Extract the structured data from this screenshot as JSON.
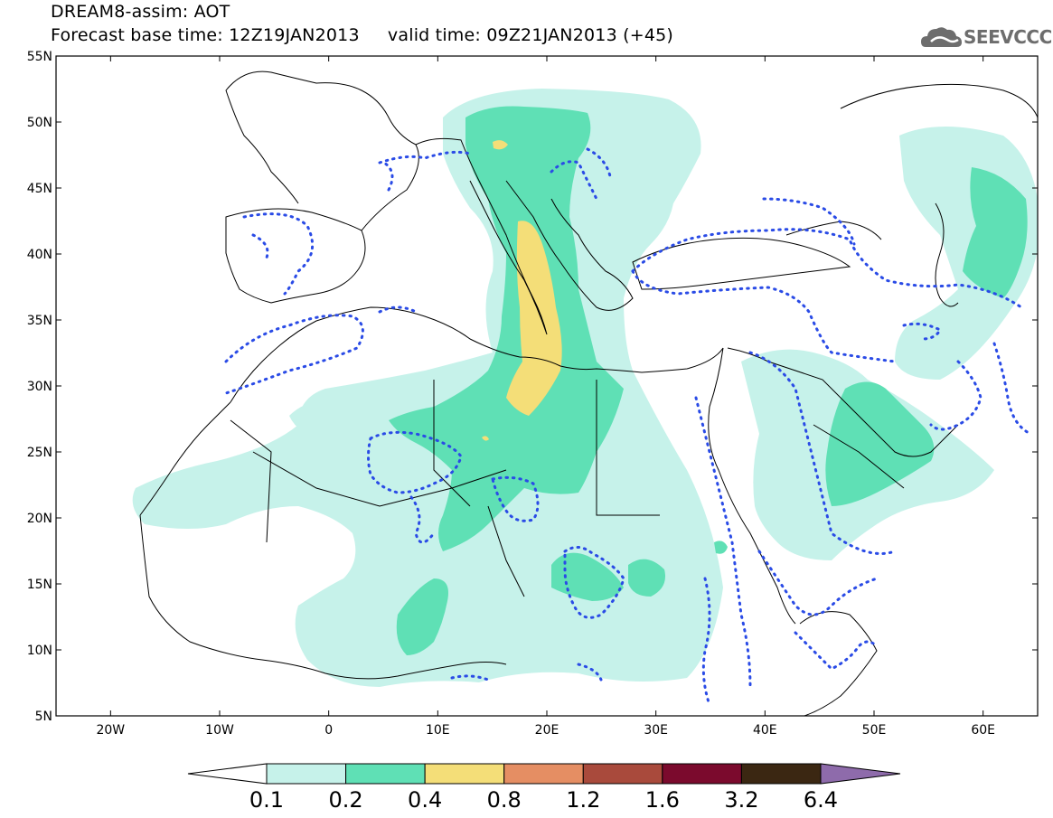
{
  "header": {
    "line1": "DREAM8-assim: AOT",
    "line2": "Forecast base time: 12Z19JAN2013     valid time: 09Z21JAN2013 (+45)"
  },
  "logo": {
    "text": "SEEVCCC",
    "icon": "cloud-icon"
  },
  "map": {
    "lat_labels": [
      "55N",
      "50N",
      "45N",
      "40N",
      "35N",
      "30N",
      "25N",
      "20N",
      "15N",
      "10N",
      "5N"
    ],
    "lon_labels": [
      "20W",
      "10W",
      "0",
      "10E",
      "20E",
      "30E",
      "40E",
      "50E",
      "60E"
    ]
  },
  "colorbar": {
    "labels": [
      "0.1",
      "0.2",
      "0.4",
      "0.8",
      "1.2",
      "1.6",
      "3.2",
      "6.4"
    ],
    "colors": [
      "#ffffff",
      "#c6f2ea",
      "#5fe0b5",
      "#f4de78",
      "#e58e63",
      "#a94a3c",
      "#7b0a2d",
      "#3b2712",
      "#8e6bab"
    ]
  }
}
